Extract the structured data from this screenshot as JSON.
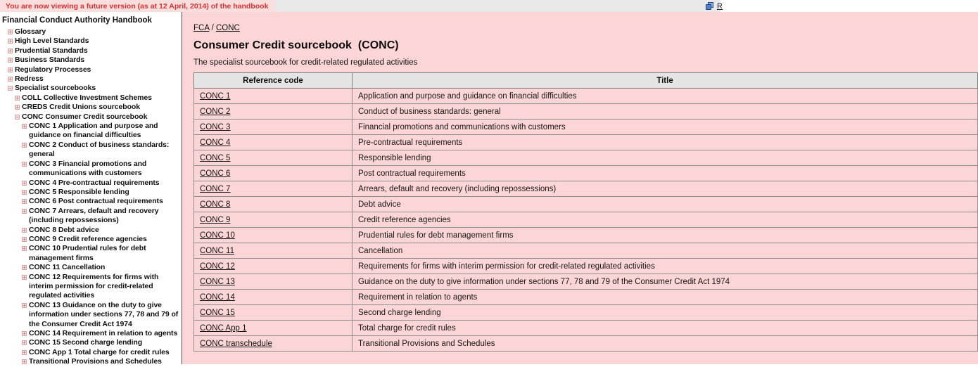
{
  "colors": {
    "main_background": "#fcd6d6",
    "banner_background": "#f9dede",
    "banner_text": "#e02f2f",
    "table_header_background": "#e4e4e4",
    "icon_blue": "#4f82d2"
  },
  "banner": {
    "notice": "You are now viewing a future version (as at 12 April, 2014) of the handbook",
    "pages_icon": "blue-stacked-pages-icon",
    "truncated_link": "R"
  },
  "sidebar": {
    "title": "Financial Conduct Authority Handbook",
    "tree": [
      {
        "label": "Glossary",
        "state": "collapsed",
        "children": []
      },
      {
        "label": "High Level Standards",
        "state": "collapsed",
        "children": []
      },
      {
        "label": "Prudential Standards",
        "state": "collapsed",
        "children": []
      },
      {
        "label": "Business Standards",
        "state": "collapsed",
        "children": []
      },
      {
        "label": "Regulatory Processes",
        "state": "collapsed",
        "children": []
      },
      {
        "label": "Redress",
        "state": "collapsed",
        "children": []
      },
      {
        "label": "Specialist sourcebooks",
        "state": "expanded",
        "children": [
          {
            "label": "COLL Collective Investment Schemes",
            "state": "collapsed",
            "children": []
          },
          {
            "label": "CREDS Credit Unions sourcebook",
            "state": "collapsed",
            "children": []
          },
          {
            "label": "CONC Consumer Credit sourcebook",
            "state": "expanded",
            "children": [
              {
                "label": "CONC 1 Application and purpose and guidance on financial difficulties",
                "state": "collapsed",
                "children": []
              },
              {
                "label": "CONC 2 Conduct of business standards: general",
                "state": "collapsed",
                "children": []
              },
              {
                "label": "CONC 3 Financial promotions and communications with customers",
                "state": "collapsed",
                "children": []
              },
              {
                "label": "CONC 4 Pre-contractual requirements",
                "state": "collapsed",
                "children": []
              },
              {
                "label": "CONC 5 Responsible lending",
                "state": "collapsed",
                "children": []
              },
              {
                "label": "CONC 6 Post contractual requirements",
                "state": "collapsed",
                "children": []
              },
              {
                "label": "CONC 7 Arrears, default and recovery (including repossessions)",
                "state": "collapsed",
                "children": []
              },
              {
                "label": "CONC 8 Debt advice",
                "state": "collapsed",
                "children": []
              },
              {
                "label": "CONC 9 Credit reference agencies",
                "state": "collapsed",
                "children": []
              },
              {
                "label": "CONC 10 Prudential rules for debt management firms",
                "state": "collapsed",
                "children": []
              },
              {
                "label": "CONC 11 Cancellation",
                "state": "collapsed",
                "children": []
              },
              {
                "label": "CONC 12 Requirements for firms with interim permission for credit-related regulated activities",
                "state": "collapsed",
                "children": []
              },
              {
                "label": "CONC 13 Guidance on the duty to give information under sections 77, 78 and 79 of the Consumer Credit Act 1974",
                "state": "collapsed",
                "children": []
              },
              {
                "label": "CONC 14 Requirement in relation to agents",
                "state": "collapsed",
                "children": []
              },
              {
                "label": "CONC 15 Second charge lending",
                "state": "collapsed",
                "children": []
              },
              {
                "label": "CONC App 1 Total charge for credit rules",
                "state": "collapsed",
                "children": []
              },
              {
                "label": "Transitional Provisions and Schedules",
                "state": "collapsed",
                "children": []
              }
            ]
          }
        ]
      }
    ]
  },
  "main": {
    "breadcrumb": [
      "FCA",
      "CONC"
    ],
    "breadcrumb_separator": "/",
    "title": "Consumer Credit sourcebook  (CONC)",
    "subtitle": "The specialist sourcebook for credit-related regulated activities",
    "table": {
      "headers": [
        "Reference code",
        "Title"
      ],
      "rows": [
        {
          "code": "CONC 1",
          "title": "Application and purpose and guidance on financial difficulties"
        },
        {
          "code": "CONC 2",
          "title": "Conduct of business standards: general"
        },
        {
          "code": "CONC 3",
          "title": "Financial promotions and communications with customers"
        },
        {
          "code": "CONC 4",
          "title": "Pre-contractual requirements"
        },
        {
          "code": "CONC 5",
          "title": "Responsible lending"
        },
        {
          "code": "CONC 6",
          "title": "Post contractual requirements"
        },
        {
          "code": "CONC 7",
          "title": "Arrears, default and recovery (including repossessions)"
        },
        {
          "code": "CONC 8",
          "title": "Debt advice"
        },
        {
          "code": "CONC 9",
          "title": "Credit reference agencies"
        },
        {
          "code": "CONC 10",
          "title": "Prudential rules for debt management firms"
        },
        {
          "code": "CONC 11",
          "title": "Cancellation"
        },
        {
          "code": "CONC 12",
          "title": "Requirements for firms with interim permission for credit-related regulated activities"
        },
        {
          "code": "CONC 13",
          "title": "Guidance on the duty to give information under sections 77, 78 and 79 of the Consumer Credit Act 1974"
        },
        {
          "code": "CONC 14",
          "title": "Requirement in relation to agents"
        },
        {
          "code": "CONC 15",
          "title": "Second charge lending"
        },
        {
          "code": "CONC App 1",
          "title": "Total charge for credit rules"
        },
        {
          "code": "CONC transchedule",
          "title": "Transitional Provisions and Schedules"
        }
      ]
    }
  }
}
